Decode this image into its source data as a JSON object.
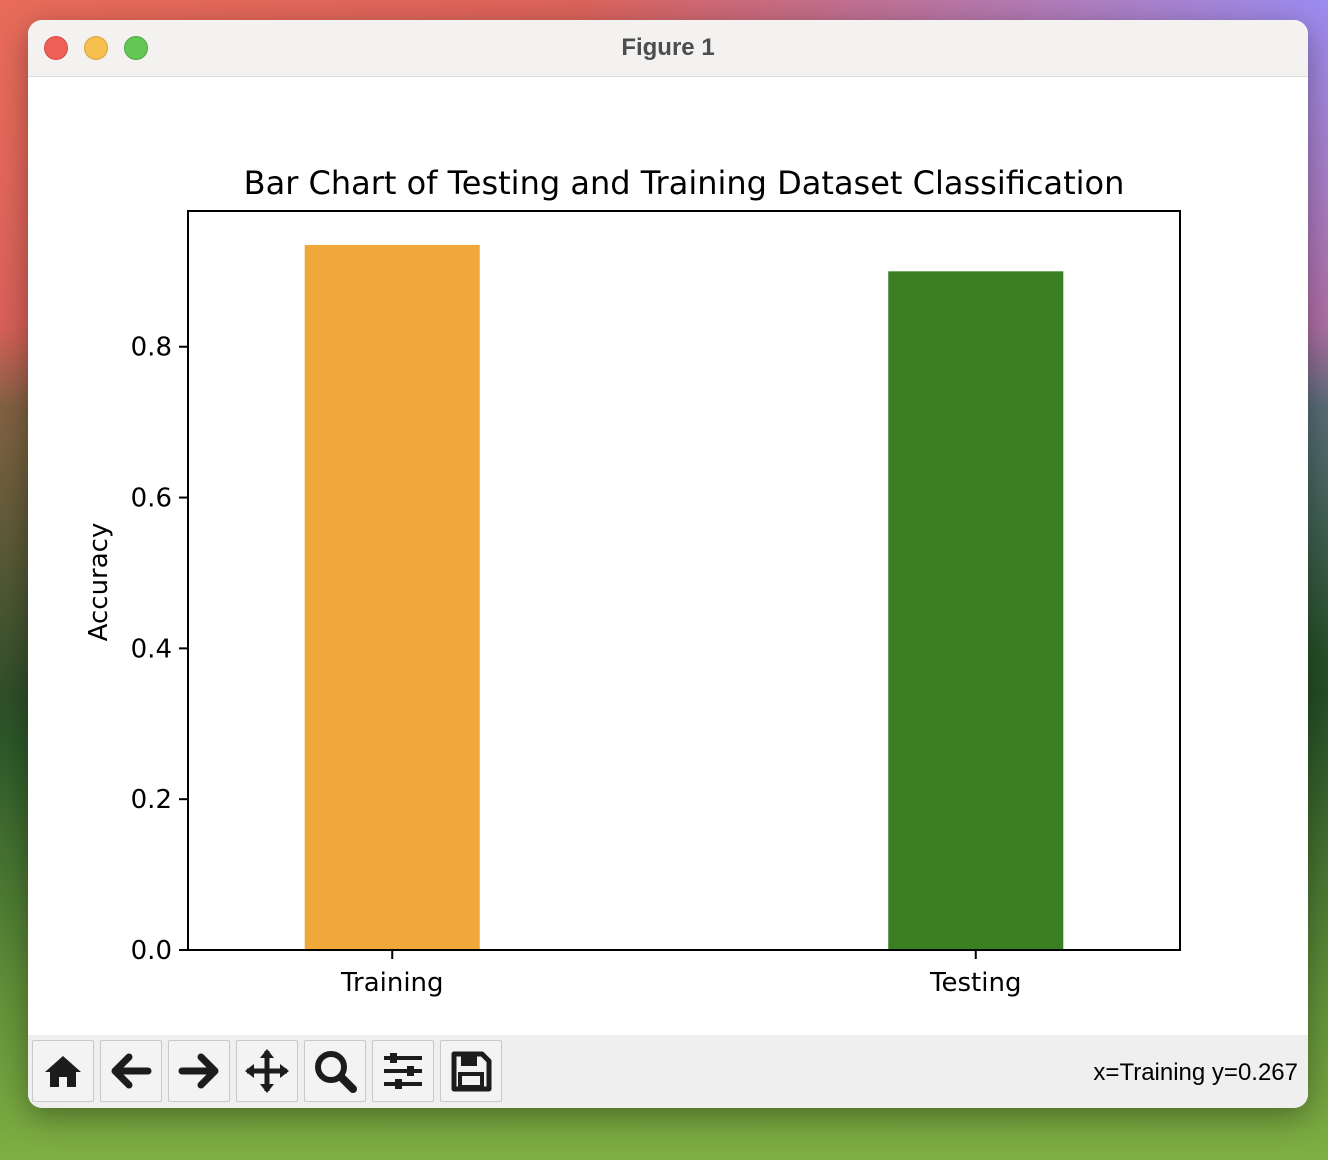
{
  "window": {
    "title": "Figure 1"
  },
  "toolbar": {
    "buttons": [
      {
        "name": "home-icon"
      },
      {
        "name": "back-arrow-icon"
      },
      {
        "name": "forward-arrow-icon"
      },
      {
        "name": "pan-move-icon"
      },
      {
        "name": "zoom-magnifier-icon"
      },
      {
        "name": "configure-subplots-icon"
      },
      {
        "name": "save-disk-icon"
      }
    ],
    "status": "x=Training y=0.267"
  },
  "chart_data": {
    "type": "bar",
    "title": "Bar Chart of Testing and Training Dataset Classification",
    "xlabel": "",
    "ylabel": "Accuracy",
    "categories": [
      "Training",
      "Testing"
    ],
    "values": [
      0.935,
      0.9
    ],
    "colors": [
      "#f0a83b",
      "#3a7f21"
    ],
    "ylim": [
      0,
      0.98
    ],
    "yticks": [
      0.0,
      0.2,
      0.4,
      0.6,
      0.8
    ],
    "ytick_labels": [
      "0.0",
      "0.2",
      "0.4",
      "0.6",
      "0.8"
    ],
    "grid": false,
    "legend": "none"
  }
}
